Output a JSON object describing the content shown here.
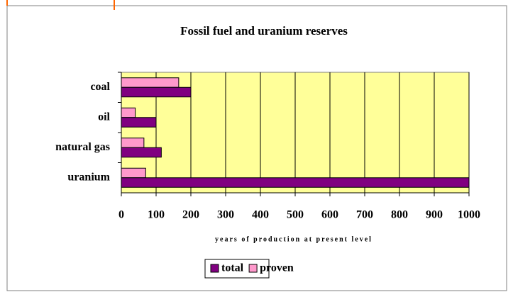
{
  "chart_data": {
    "type": "bar",
    "orientation": "horizontal",
    "title": "Fossil fuel and uranium reserves",
    "x_label": "years of production at present level",
    "categories": [
      "coal",
      "oil",
      "natural gas",
      "uranium"
    ],
    "series": [
      {
        "name": "total",
        "color": "#800080",
        "values": [
          200,
          100,
          115,
          1000
        ]
      },
      {
        "name": "proven",
        "color": "#ff99cc",
        "values": [
          165,
          40,
          65,
          70
        ]
      }
    ],
    "xlim": [
      0,
      1000
    ],
    "xticks": [
      0,
      100,
      200,
      300,
      400,
      500,
      600,
      700,
      800,
      900,
      1000
    ],
    "grid": true,
    "legend": "bottom",
    "plot_background": "#ffff99"
  }
}
